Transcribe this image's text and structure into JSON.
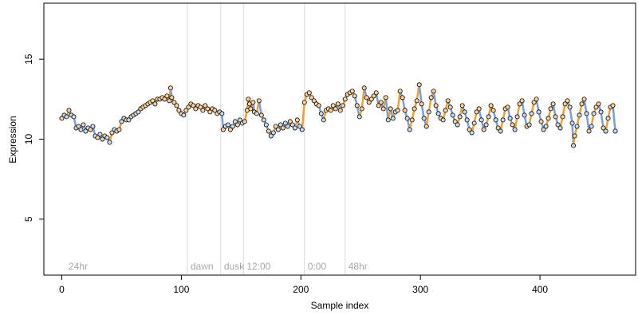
{
  "chart_data": {
    "type": "scatter",
    "title": "",
    "xlabel": "Sample index",
    "ylabel": "Expression",
    "xlim": [
      -15,
      480
    ],
    "ylim": [
      1.5,
      18.5
    ],
    "x_ticks": [
      0,
      100,
      200,
      300,
      400
    ],
    "y_ticks": [
      5,
      10,
      15
    ],
    "x_tick_labels": [
      "0",
      "100",
      "200",
      "300",
      "400"
    ],
    "y_tick_labels": [
      "5",
      "10",
      "15"
    ],
    "grid": false,
    "legend": "none",
    "annotations": [
      {
        "x": 3,
        "text": "24hr",
        "line": false
      },
      {
        "x": 105,
        "text": "dawn",
        "line": true
      },
      {
        "x": 133,
        "text": "dusk",
        "line": true
      },
      {
        "x": 152,
        "text": "12:00",
        "line": true
      },
      {
        "x": 203,
        "text": "0:00",
        "line": true
      },
      {
        "x": 237,
        "text": "48hr",
        "line": true
      }
    ],
    "colors": {
      "points_default": "#c8dcf0",
      "points_highlight": "#ffd39b",
      "points_outline": "#000000",
      "trend_line": "#a9a9a9",
      "trend_up": "#f0a030",
      "trend_down": "#7a9fd6",
      "divider": "#d9d9d9"
    },
    "series": [
      {
        "values": [
          [
            0,
            11.3
          ],
          [
            2,
            11.5
          ],
          [
            4,
            11.4
          ],
          [
            6,
            11.8
          ],
          [
            8,
            11.5
          ],
          [
            10,
            11.4
          ],
          [
            12,
            10.7
          ],
          [
            14,
            10.8
          ],
          [
            16,
            10.6
          ],
          [
            18,
            10.9
          ],
          [
            20,
            10.5
          ],
          [
            22,
            10.7
          ],
          [
            24,
            10.6
          ],
          [
            26,
            10.8
          ],
          [
            28,
            10.2
          ],
          [
            30,
            10.1
          ],
          [
            32,
            10.3
          ],
          [
            34,
            10.0
          ],
          [
            36,
            10.2
          ],
          [
            38,
            10.1
          ],
          [
            40,
            9.8
          ],
          [
            42,
            10.4
          ],
          [
            44,
            10.6
          ],
          [
            46,
            10.5
          ],
          [
            48,
            10.6
          ],
          [
            50,
            11.1
          ],
          [
            52,
            11.3
          ],
          [
            54,
            11.2
          ],
          [
            56,
            11.2
          ],
          [
            58,
            11.4
          ],
          [
            60,
            11.5
          ],
          [
            62,
            11.6
          ],
          [
            64,
            11.7
          ],
          [
            66,
            11.9
          ],
          [
            68,
            12.0
          ],
          [
            70,
            12.1
          ],
          [
            72,
            12.2
          ],
          [
            74,
            12.3
          ],
          [
            76,
            12.4
          ],
          [
            78,
            12.2
          ],
          [
            80,
            12.5
          ],
          [
            82,
            12.5
          ],
          [
            84,
            12.6
          ],
          [
            86,
            12.5
          ],
          [
            88,
            12.7
          ],
          [
            90,
            12.4
          ],
          [
            91,
            13.2
          ],
          [
            92,
            12.6
          ],
          [
            94,
            12.3
          ],
          [
            96,
            12.1
          ],
          [
            98,
            11.8
          ],
          [
            100,
            11.6
          ],
          [
            102,
            11.5
          ],
          [
            104,
            11.8
          ],
          [
            106,
            12.0
          ],
          [
            108,
            12.2
          ],
          [
            110,
            12.1
          ],
          [
            112,
            11.9
          ],
          [
            114,
            12.1
          ],
          [
            116,
            12.0
          ],
          [
            118,
            11.8
          ],
          [
            120,
            12.1
          ],
          [
            122,
            11.9
          ],
          [
            124,
            11.7
          ],
          [
            126,
            11.9
          ],
          [
            128,
            11.8
          ],
          [
            130,
            11.6
          ],
          [
            132,
            11.7
          ],
          [
            134,
            11.6
          ],
          [
            135,
            10.6
          ],
          [
            137,
            10.8
          ],
          [
            139,
            10.9
          ],
          [
            141,
            10.6
          ],
          [
            143,
            10.8
          ],
          [
            145,
            11.1
          ],
          [
            147,
            10.9
          ],
          [
            149,
            11.2
          ],
          [
            151,
            11.0
          ],
          [
            153,
            11.1
          ],
          [
            155,
            11.8
          ],
          [
            156,
            12.5
          ],
          [
            157,
            12.2
          ],
          [
            158,
            11.9
          ],
          [
            160,
            12.3
          ],
          [
            161,
            11.7
          ],
          [
            163,
            11.6
          ],
          [
            165,
            12.4
          ],
          [
            167,
            11.5
          ],
          [
            169,
            11.2
          ],
          [
            171,
            10.9
          ],
          [
            173,
            10.5
          ],
          [
            175,
            10.2
          ],
          [
            177,
            10.4
          ],
          [
            179,
            10.8
          ],
          [
            181,
            10.6
          ],
          [
            183,
            10.9
          ],
          [
            185,
            10.7
          ],
          [
            187,
            11.0
          ],
          [
            189,
            10.8
          ],
          [
            191,
            11.1
          ],
          [
            193,
            10.9
          ],
          [
            195,
            10.7
          ],
          [
            197,
            11.2
          ],
          [
            199,
            10.8
          ],
          [
            201,
            10.6
          ],
          [
            203,
            12.3
          ],
          [
            205,
            12.8
          ],
          [
            207,
            12.9
          ],
          [
            209,
            12.6
          ],
          [
            211,
            12.4
          ],
          [
            213,
            12.2
          ],
          [
            215,
            12.1
          ],
          [
            217,
            11.6
          ],
          [
            219,
            11.2
          ],
          [
            221,
            11.8
          ],
          [
            223,
            11.9
          ],
          [
            225,
            11.8
          ],
          [
            227,
            12.1
          ],
          [
            229,
            11.9
          ],
          [
            231,
            12.2
          ],
          [
            233,
            11.8
          ],
          [
            235,
            12.1
          ],
          [
            237,
            12.5
          ],
          [
            239,
            12.8
          ],
          [
            241,
            12.9
          ],
          [
            243,
            13.0
          ],
          [
            245,
            12.7
          ],
          [
            247,
            12.1
          ],
          [
            249,
            11.4
          ],
          [
            251,
            11.9
          ],
          [
            253,
            13.2
          ],
          [
            255,
            12.6
          ],
          [
            257,
            12.3
          ],
          [
            259,
            12.5
          ],
          [
            261,
            12.7
          ],
          [
            263,
            12.9
          ],
          [
            265,
            12.1
          ],
          [
            267,
            12.3
          ],
          [
            269,
            11.9
          ],
          [
            271,
            12.6
          ],
          [
            273,
            11.2
          ],
          [
            275,
            11.9
          ],
          [
            277,
            11.3
          ],
          [
            279,
            11.7
          ],
          [
            281,
            11.8
          ],
          [
            283,
            13.0
          ],
          [
            285,
            12.6
          ],
          [
            287,
            11.8
          ],
          [
            289,
            11.3
          ],
          [
            291,
            10.6
          ],
          [
            293,
            11.2
          ],
          [
            295,
            11.9
          ],
          [
            297,
            12.4
          ],
          [
            299,
            13.4
          ],
          [
            301,
            12.2
          ],
          [
            303,
            11.3
          ],
          [
            305,
            10.8
          ],
          [
            307,
            11.7
          ],
          [
            309,
            12.6
          ],
          [
            311,
            13.0
          ],
          [
            313,
            12.1
          ],
          [
            315,
            11.6
          ],
          [
            317,
            11.3
          ],
          [
            319,
            11.2
          ],
          [
            321,
            11.8
          ],
          [
            323,
            12.4
          ],
          [
            325,
            12.0
          ],
          [
            327,
            11.5
          ],
          [
            329,
            11.1
          ],
          [
            331,
            10.9
          ],
          [
            333,
            11.4
          ],
          [
            335,
            12.1
          ],
          [
            337,
            11.7
          ],
          [
            339,
            11.2
          ],
          [
            341,
            10.6
          ],
          [
            343,
            10.4
          ],
          [
            345,
            11.0
          ],
          [
            347,
            11.7
          ],
          [
            349,
            11.9
          ],
          [
            351,
            11.2
          ],
          [
            353,
            10.6
          ],
          [
            355,
            10.9
          ],
          [
            357,
            11.4
          ],
          [
            359,
            12.1
          ],
          [
            361,
            11.8
          ],
          [
            363,
            11.2
          ],
          [
            365,
            10.7
          ],
          [
            367,
            10.5
          ],
          [
            369,
            11.2
          ],
          [
            371,
            11.9
          ],
          [
            373,
            12.0
          ],
          [
            375,
            11.3
          ],
          [
            377,
            10.9
          ],
          [
            379,
            10.6
          ],
          [
            381,
            11.4
          ],
          [
            383,
            12.2
          ],
          [
            385,
            12.4
          ],
          [
            387,
            11.5
          ],
          [
            389,
            10.8
          ],
          [
            391,
            10.9
          ],
          [
            393,
            11.6
          ],
          [
            395,
            12.3
          ],
          [
            397,
            12.5
          ],
          [
            399,
            11.7
          ],
          [
            401,
            11.1
          ],
          [
            403,
            10.6
          ],
          [
            405,
            10.8
          ],
          [
            407,
            11.3
          ],
          [
            409,
            11.9
          ],
          [
            411,
            12.2
          ],
          [
            413,
            11.4
          ],
          [
            415,
            10.9
          ],
          [
            417,
            10.7
          ],
          [
            419,
            11.4
          ],
          [
            421,
            12.2
          ],
          [
            423,
            12.4
          ],
          [
            425,
            12.0
          ],
          [
            427,
            11.0
          ],
          [
            428,
            9.6
          ],
          [
            429,
            10.2
          ],
          [
            431,
            10.8
          ],
          [
            433,
            11.5
          ],
          [
            435,
            12.2
          ],
          [
            437,
            12.5
          ],
          [
            439,
            11.6
          ],
          [
            441,
            10.5
          ],
          [
            443,
            10.8
          ],
          [
            445,
            11.6
          ],
          [
            447,
            12.0
          ],
          [
            449,
            12.2
          ],
          [
            451,
            11.7
          ],
          [
            453,
            10.7
          ],
          [
            455,
            10.5
          ],
          [
            457,
            11.3
          ],
          [
            459,
            12.0
          ],
          [
            461,
            12.1
          ],
          [
            463,
            10.5
          ]
        ]
      }
    ]
  }
}
